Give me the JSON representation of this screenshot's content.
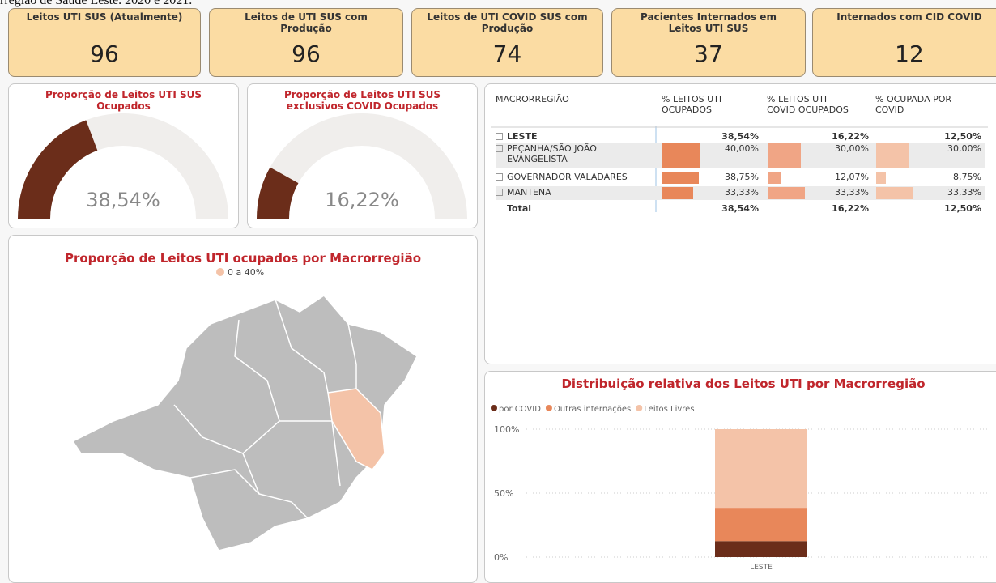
{
  "caption": "rregião de Saúde Leste. 2020 e 2021.",
  "kpis": [
    {
      "title": "Leitos UTI SUS (Atualmente)",
      "value": 96
    },
    {
      "title": "Leitos de UTI SUS com Produção",
      "value": 96
    },
    {
      "title": "Leitos de UTI COVID SUS com Produção",
      "value": 74
    },
    {
      "title": "Pacientes Internados em Leitos UTI SUS",
      "value": 37
    },
    {
      "title": "Internados com CID COVID",
      "value": 12
    }
  ],
  "gauges": [
    {
      "title": "Proporção de Leitos UTI SUS Ocupados",
      "value": 38.54,
      "value_label": "38,54%"
    },
    {
      "title": "Proporção de Leitos UTI SUS exclusivos COVID Ocupados",
      "value": 16.22,
      "value_label": "16,22%"
    }
  ],
  "map": {
    "title": "Proporção de Leitos UTI ocupados por Macrorregião",
    "legend": "0 a 40%"
  },
  "table": {
    "columns": [
      "MACRORREGIÃO",
      "% LEITOS UTI OCUPADOS",
      "% LEITOS UTI COVID OCUPADOS",
      "% OCUPADA POR COVID"
    ],
    "group": {
      "name": "LESTE",
      "value_labels": [
        "38,54%",
        "16,22%",
        "12,50%"
      ]
    },
    "children": [
      {
        "name": "PEÇANHA/SÃO JOÃO EVANGELISTA",
        "values": [
          40.0,
          30.0,
          30.0
        ],
        "value_labels": [
          "40,00%",
          "30,00%",
          "30,00%"
        ]
      },
      {
        "name": "GOVERNADOR VALADARES",
        "values": [
          38.75,
          12.07,
          8.75
        ],
        "value_labels": [
          "38,75%",
          "12,07%",
          "8,75%"
        ]
      },
      {
        "name": "MANTENA",
        "values": [
          33.33,
          33.33,
          33.33
        ],
        "value_labels": [
          "33,33%",
          "33,33%",
          "33,33%"
        ]
      }
    ],
    "bar_colors": [
      "#e8875a",
      "#f0a585",
      "#f4c3a8"
    ],
    "total": {
      "name": "Total",
      "value_labels": [
        "38,54%",
        "16,22%",
        "12,50%"
      ]
    }
  },
  "chart_data": {
    "type": "bar",
    "stacked": true,
    "title": "Distribuição relativa dos Leitos UTI por Macrorregião",
    "categories": [
      "LESTE"
    ],
    "series": [
      {
        "name": "por COVID",
        "color": "#6b2d1a",
        "values": [
          12.5
        ]
      },
      {
        "name": "Outras internações",
        "color": "#e8875a",
        "values": [
          26.04
        ]
      },
      {
        "name": "Leitos Livres",
        "color": "#f4c3a8",
        "values": [
          61.46
        ]
      }
    ],
    "ylim": [
      0,
      100
    ],
    "yticks": [
      {
        "value": 0,
        "label": "0%"
      },
      {
        "value": 50,
        "label": "50%"
      },
      {
        "value": 100,
        "label": "100%"
      }
    ],
    "grid": true
  }
}
